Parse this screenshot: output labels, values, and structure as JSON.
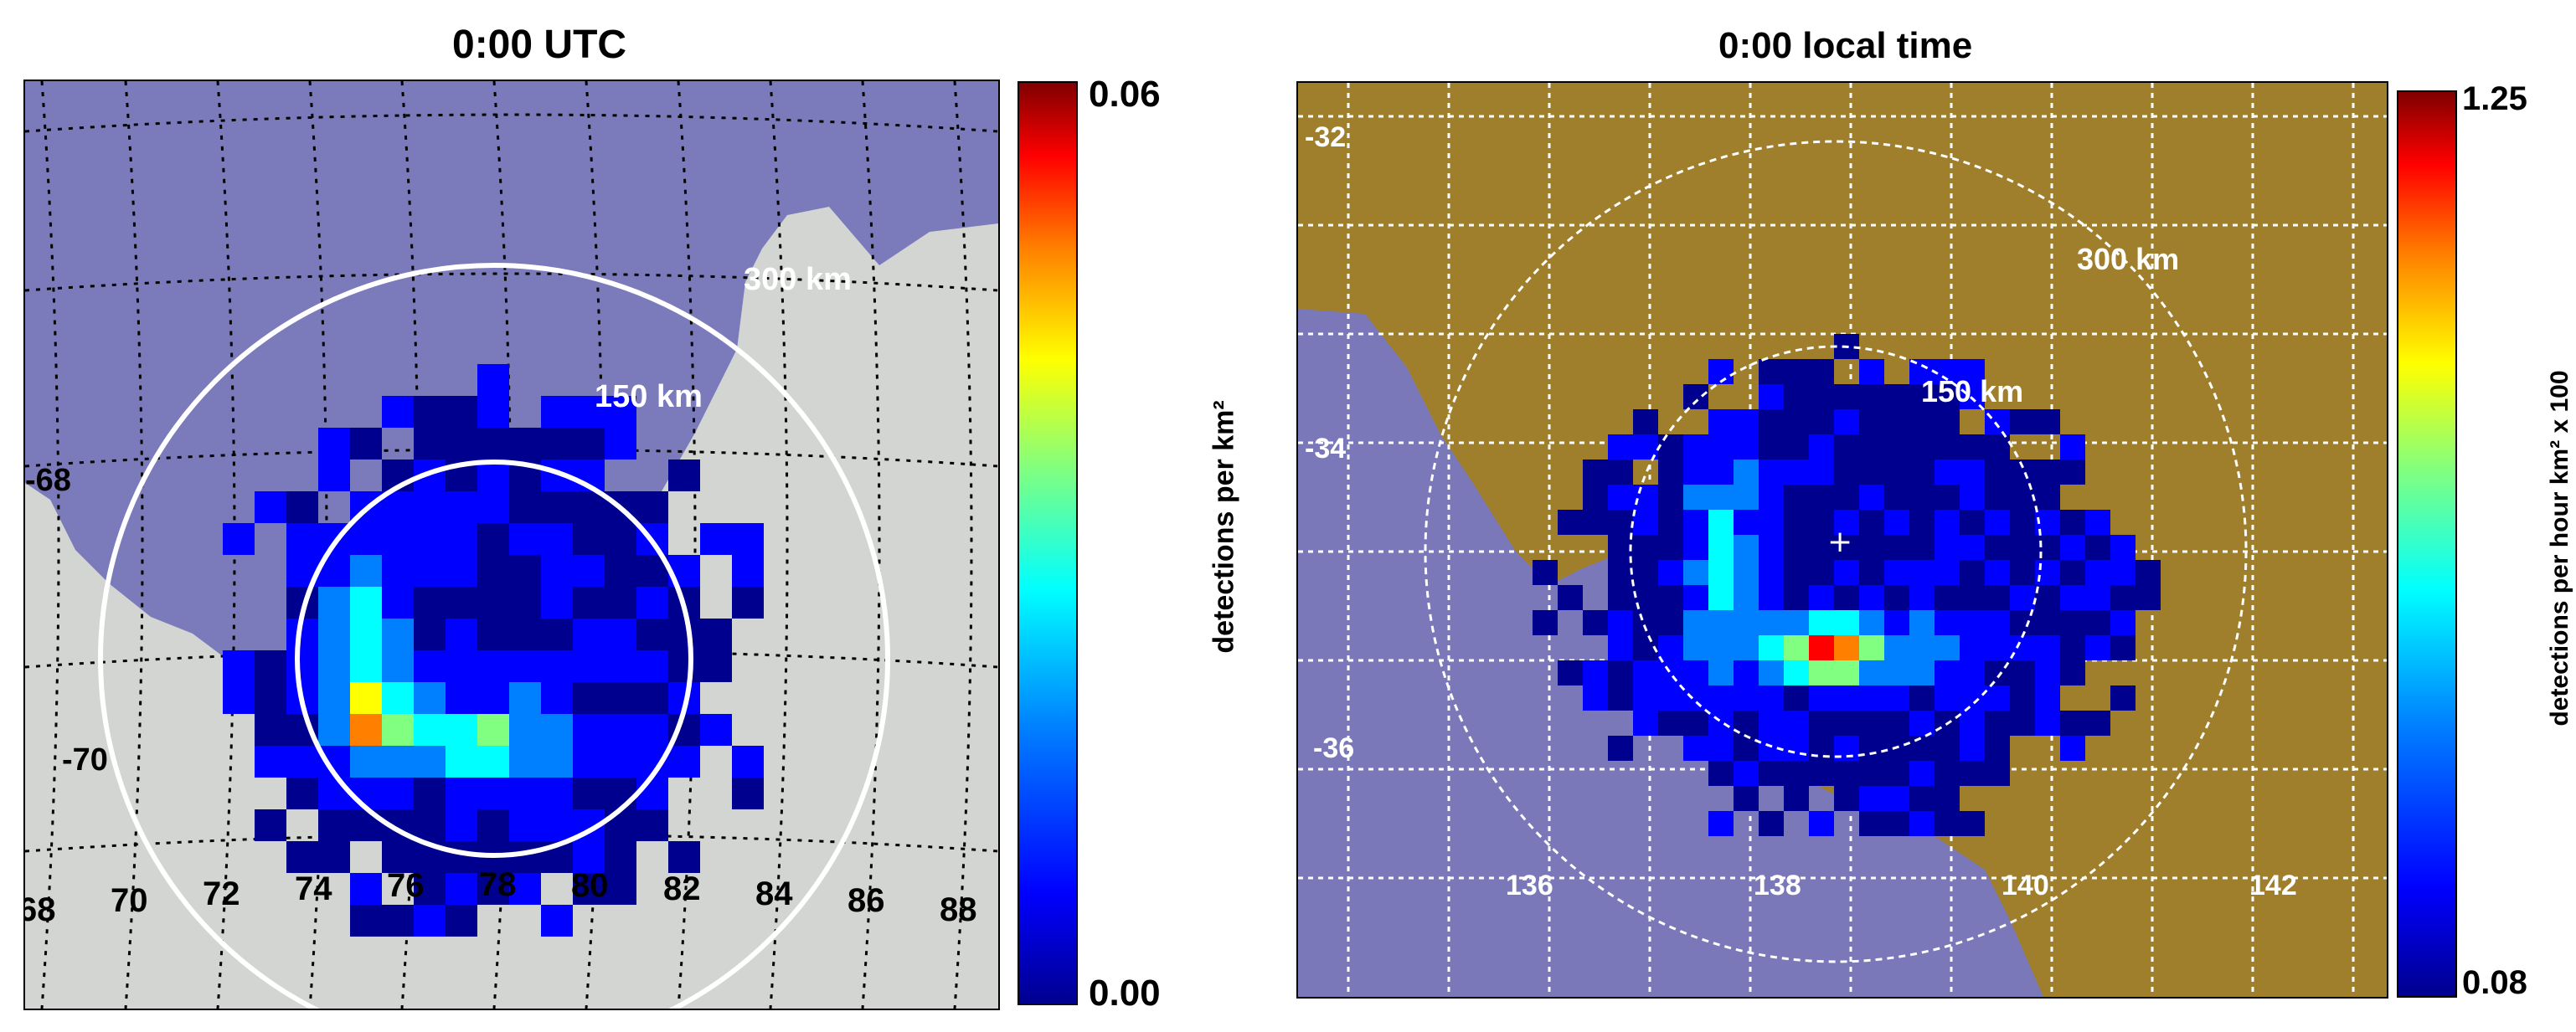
{
  "left_panel": {
    "title": "0:00 UTC",
    "ring_labels": {
      "outer": "300 km",
      "inner": "150 km"
    },
    "lat_labels": [
      "-68",
      "-70"
    ],
    "lon_labels": [
      "68",
      "70",
      "72",
      "74",
      "76",
      "78",
      "80",
      "82",
      "84",
      "86",
      "88"
    ],
    "colorbar": {
      "max_label": "0.06",
      "min_label": "0.00",
      "label": "detections per km²"
    },
    "colors": {
      "ocean": "#7b7bbb",
      "land": "#d3d5d2",
      "grid": "#000000",
      "ring": "#ffffff"
    }
  },
  "right_panel": {
    "title": "0:00 local time",
    "ring_labels": {
      "outer": "300 km",
      "inner": "150 km"
    },
    "lat_labels": [
      "-32",
      "-34",
      "-36"
    ],
    "lon_labels": [
      "136",
      "138",
      "140",
      "142"
    ],
    "colorbar": {
      "max_label": "1.25",
      "min_label": "0.08",
      "label": "detections per hour km² x 100"
    },
    "colors": {
      "ocean": "#7a78b8",
      "land": "#a07f2c",
      "grid": "#ffffff",
      "ring": "#ffffff"
    }
  },
  "colormap": [
    "#00008f",
    "#0000ff",
    "#0080ff",
    "#00ffff",
    "#80ff80",
    "#ffff00",
    "#ff8000",
    "#ff0000",
    "#800000"
  ]
}
